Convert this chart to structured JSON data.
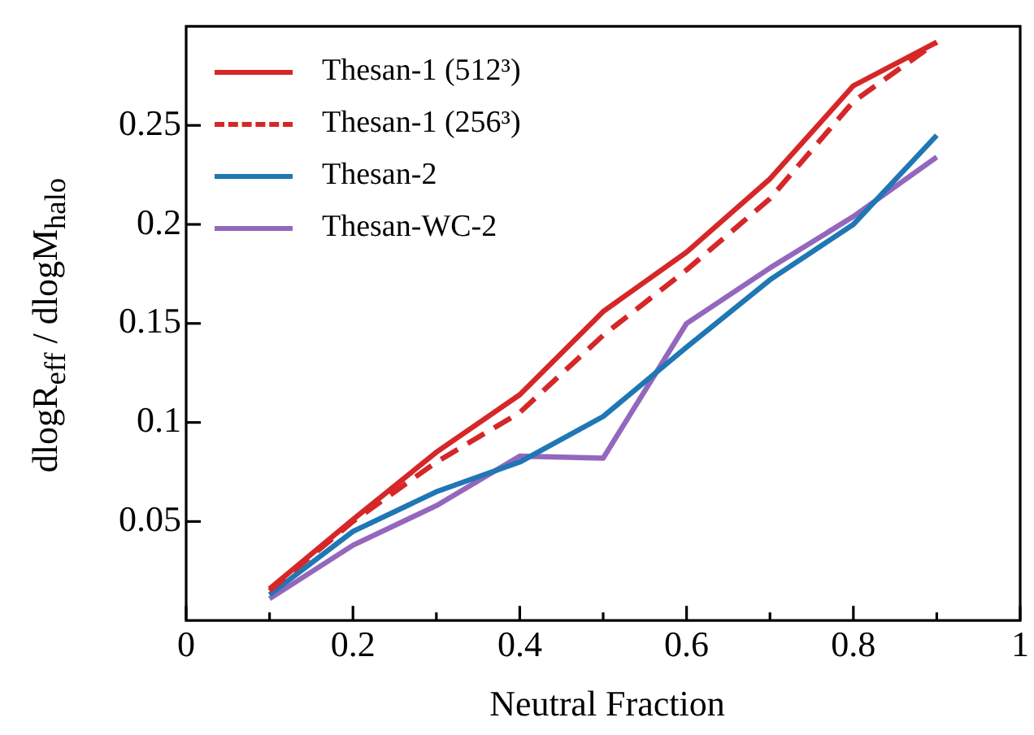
{
  "chart_data": {
    "type": "line",
    "xlabel": "Neutral Fraction",
    "ylabel": "dlogR$_{eff}$ / dlogM$_{halo}$",
    "x": [
      0.1,
      0.2,
      0.3,
      0.4,
      0.5,
      0.6,
      0.7,
      0.8,
      0.9
    ],
    "xlim": [
      0,
      1
    ],
    "xticks": [
      0,
      {
        "value": 0.1,
        "label": null
      },
      0.2,
      {
        "value": 0.3,
        "label": null
      },
      0.4,
      {
        "value": 0.5,
        "label": null
      },
      0.6,
      {
        "value": 0.7,
        "label": null
      },
      0.8,
      {
        "value": 0.9,
        "label": null
      },
      1
    ],
    "ylim": [
      0,
      0.3
    ],
    "yticks": [
      0.05,
      0.1,
      0.15,
      0.2,
      0.25
    ],
    "grid": false,
    "legend": "top left",
    "marker": "none",
    "series": [
      {
        "name": "Thesan-1 (512³)",
        "color": "#d62728",
        "line_style": "solid",
        "values": [
          0.016,
          0.051,
          0.085,
          0.114,
          0.156,
          0.186,
          0.223,
          0.27,
          0.292
        ]
      },
      {
        "name": "Thesan-1 (256³)",
        "color": "#d62728",
        "line_style": "dashed",
        "values": [
          0.015,
          0.05,
          0.08,
          0.105,
          0.144,
          0.177,
          0.213,
          0.262,
          0.292
        ]
      },
      {
        "name": "Thesan-2",
        "color": "#1f77b4",
        "line_style": "solid",
        "values": [
          0.013,
          0.045,
          0.065,
          0.08,
          0.103,
          0.138,
          0.172,
          0.2,
          0.245
        ]
      },
      {
        "name": "Thesan-WC-2",
        "color": "#9467bd",
        "line_style": "solid",
        "values": [
          0.011,
          0.038,
          0.058,
          0.083,
          0.082,
          0.15,
          0.178,
          0.204,
          0.234
        ]
      }
    ]
  }
}
